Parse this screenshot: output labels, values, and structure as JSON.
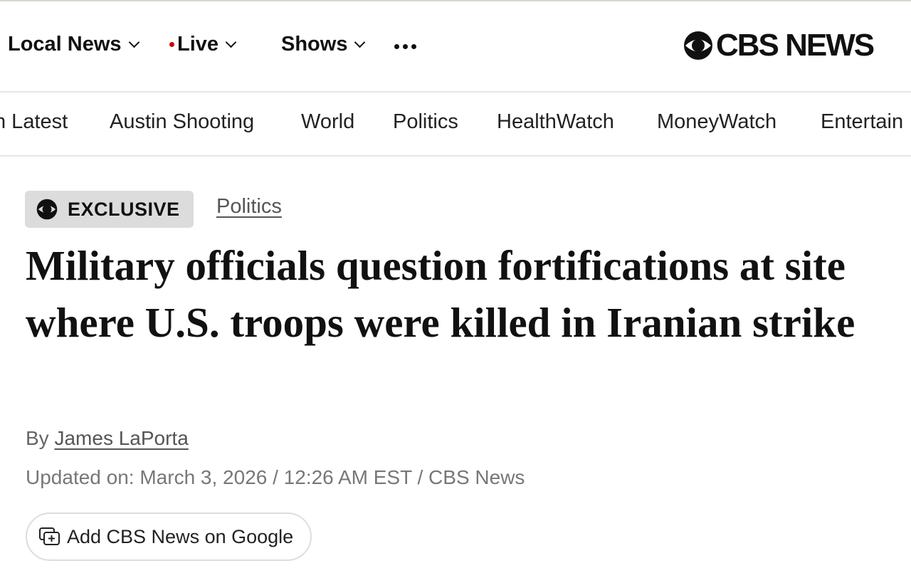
{
  "header": {
    "nav": [
      {
        "label": "Local News",
        "has_dropdown": true
      },
      {
        "label": "Live",
        "has_dropdown": true,
        "live_dot_color": "#cc0000"
      },
      {
        "label": "Shows",
        "has_dropdown": true
      }
    ],
    "more_icon": "ellipsis-icon",
    "logo_text": "CBS NEWS"
  },
  "sections": [
    "n Latest",
    "Austin Shooting",
    "World",
    "Politics",
    "HealthWatch",
    "MoneyWatch",
    "Entertain"
  ],
  "article": {
    "badge": "EXCLUSIVE",
    "category": "Politics",
    "headline": "Military officials question fortifications at site where U.S. troops were killed in Iranian strike",
    "byline_prefix": "By",
    "author": "James LaPorta",
    "updated": "Updated on: March 3, 2026 / 12:26 AM EST / CBS News",
    "google_button": "Add CBS News on Google"
  }
}
